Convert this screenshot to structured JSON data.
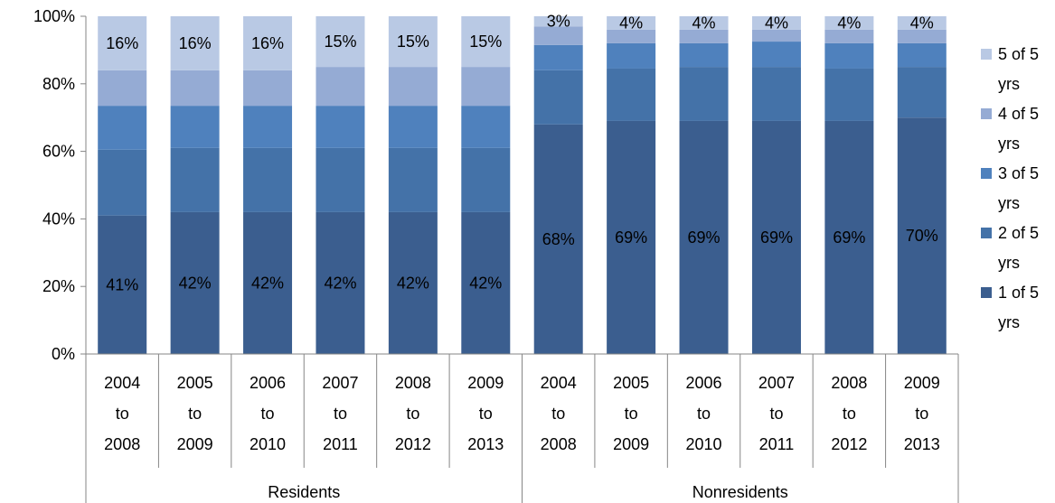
{
  "chart_data": {
    "type": "bar",
    "stacked": "percent",
    "ylim": [
      0,
      100
    ],
    "ytick_labels": [
      "0%",
      "20%",
      "40%",
      "60%",
      "80%",
      "100%"
    ],
    "grid": false,
    "legend_position": "right",
    "categories": [
      "2004 to 2008",
      "2005 to 2009",
      "2006 to 2010",
      "2007 to 2011",
      "2008 to 2012",
      "2009 to 2013",
      "2004 to 2008",
      "2005 to 2009",
      "2006 to 2010",
      "2007 to 2011",
      "2008 to 2012",
      "2009 to 2013"
    ],
    "groups": [
      {
        "label": "Residents",
        "count": 6
      },
      {
        "label": "Nonresidents",
        "count": 6
      }
    ],
    "series": [
      {
        "name": "1 of 5 yrs",
        "color": "#3b5e8f",
        "values": [
          41,
          42,
          42,
          42,
          42,
          42,
          68,
          69,
          69,
          69,
          69,
          70
        ],
        "labels": [
          "41%",
          "42%",
          "42%",
          "42%",
          "42%",
          "42%",
          "68%",
          "69%",
          "69%",
          "69%",
          "69%",
          "70%"
        ]
      },
      {
        "name": "2 of 5 yrs",
        "color": "#4472a8",
        "values": [
          19.5,
          19,
          19,
          19,
          19,
          19,
          16,
          15.5,
          16,
          16,
          15.5,
          15
        ],
        "labels": [
          "",
          "",
          "",
          "",
          "",
          "",
          "",
          "",
          "",
          "",
          "",
          ""
        ]
      },
      {
        "name": "3 of 5 yrs",
        "color": "#4f81bd",
        "values": [
          13,
          12.5,
          12.5,
          12.5,
          12.5,
          12.5,
          7.5,
          7.5,
          7,
          7.5,
          7.5,
          7
        ],
        "labels": [
          "",
          "",
          "",
          "",
          "",
          "",
          "",
          "",
          "",
          "",
          "",
          ""
        ]
      },
      {
        "name": "4 of 5 yrs",
        "color": "#95abd4",
        "values": [
          10.5,
          10.5,
          10.5,
          11.5,
          11.5,
          11.5,
          5.5,
          4,
          4,
          3.5,
          4,
          4
        ],
        "labels": [
          "",
          "",
          "",
          "",
          "",
          "",
          "",
          "",
          "",
          "",
          "",
          ""
        ]
      },
      {
        "name": "5 of 5 yrs",
        "color": "#b9c9e4",
        "values": [
          16,
          16,
          16,
          15,
          15,
          15,
          3,
          4,
          4,
          4,
          4,
          4
        ],
        "labels": [
          "16%",
          "16%",
          "16%",
          "15%",
          "15%",
          "15%",
          "3%",
          "4%",
          "4%",
          "4%",
          "4%",
          "4%"
        ]
      }
    ],
    "legend": [
      {
        "line1": "5 of 5",
        "line2": "yrs",
        "series_index": 4
      },
      {
        "line1": "4 of 5",
        "line2": "yrs",
        "series_index": 3
      },
      {
        "line1": "3 of 5",
        "line2": "yrs",
        "series_index": 2
      },
      {
        "line1": "2 of 5",
        "line2": "yrs",
        "series_index": 1
      },
      {
        "line1": "1 of 5",
        "line2": "yrs",
        "series_index": 0
      }
    ]
  }
}
